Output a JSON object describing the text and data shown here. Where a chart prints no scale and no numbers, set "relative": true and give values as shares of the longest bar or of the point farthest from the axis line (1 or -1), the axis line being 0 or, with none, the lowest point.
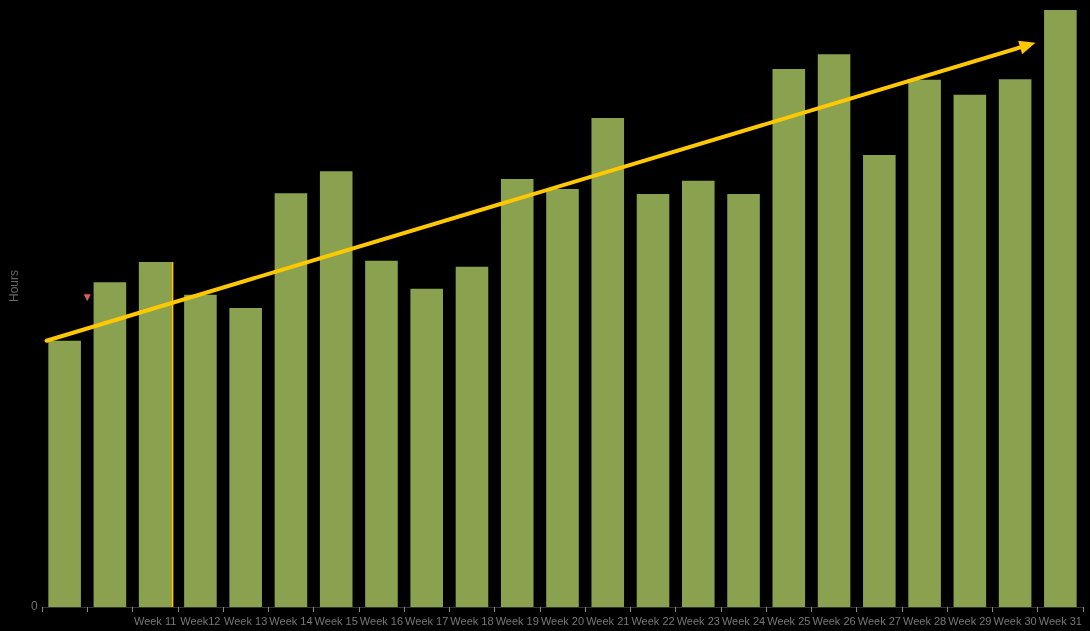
{
  "chart_data": {
    "type": "bar",
    "ylabel": "Hours",
    "relative": true,
    "color": "#8aa14f",
    "grid": false,
    "categories": [
      null,
      null,
      "Week 11",
      "Week12",
      "Week 13",
      "Week 14",
      "Week 15",
      "Week 16",
      "Week 17",
      "Week 18",
      "Week 19",
      "Week 20",
      "Week 21",
      "Week 22",
      "Week 23",
      "Week 24",
      "Week 25",
      "Week 26",
      "Week 27",
      "Week 28",
      "Week 29",
      "Week 30",
      "Week 31"
    ],
    "values": [
      0.446,
      0.544,
      0.578,
      0.523,
      0.501,
      0.693,
      0.73,
      0.58,
      0.533,
      0.57,
      0.717,
      0.7,
      0.819,
      0.692,
      0.714,
      0.692,
      0.901,
      0.926,
      0.757,
      0.883,
      0.858,
      0.884,
      1
    ],
    "annotations": [
      "0"
    ]
  }
}
